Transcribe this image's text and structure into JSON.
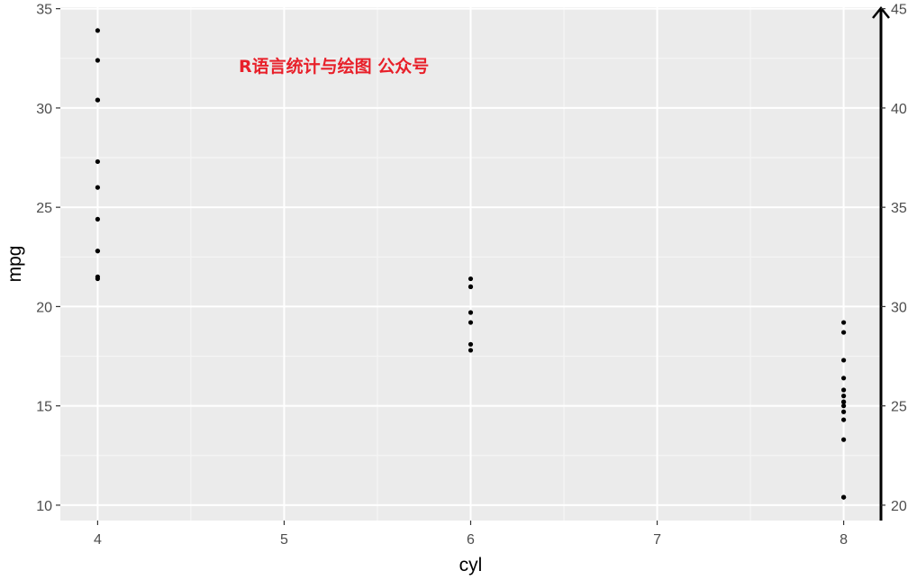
{
  "watermark": {
    "text": "R语言统计与绘图 公众号",
    "color": "#e8202a"
  },
  "colors": {
    "panel": "#ebebeb",
    "grid_major": "#ffffff",
    "grid_minor": "#f5f5f5",
    "point": "#000000",
    "tick_text": "#4d4d4d",
    "arrow": "#000000"
  },
  "chart_data": {
    "type": "scatter",
    "xlabel": "cyl",
    "ylabel": "mpg",
    "xlim": [
      3.8,
      8.2
    ],
    "ylim": [
      9.225,
      35.075
    ],
    "x_ticks": [
      4,
      5,
      6,
      7,
      8
    ],
    "x_tick_labels": [
      "4",
      "5",
      "6",
      "7",
      "8"
    ],
    "y_ticks": [
      10,
      15,
      20,
      25,
      30,
      35
    ],
    "y_tick_labels": [
      "10",
      "15",
      "20",
      "25",
      "30",
      "35"
    ],
    "secondary_y": {
      "ticks": [
        20,
        25,
        30,
        35,
        40,
        45
      ],
      "tick_labels": [
        "20",
        "25",
        "30",
        "35",
        "40",
        "45"
      ],
      "offset": 10,
      "axis_line": "arrow"
    },
    "grid": true,
    "series": [
      {
        "x": [
          4,
          4,
          4,
          4,
          4,
          4,
          4,
          4,
          4,
          4,
          4,
          6,
          6,
          6,
          6,
          6,
          6,
          6,
          8,
          8,
          8,
          8,
          8,
          8,
          8,
          8,
          8,
          8,
          8,
          8,
          8,
          8
        ],
        "y": [
          22.8,
          24.4,
          22.8,
          32.4,
          30.4,
          33.9,
          21.5,
          27.3,
          26.0,
          30.4,
          21.4,
          21.0,
          21.0,
          21.4,
          18.1,
          19.2,
          17.8,
          19.7,
          18.7,
          14.3,
          16.4,
          17.3,
          15.2,
          10.4,
          10.4,
          14.7,
          15.5,
          15.2,
          13.3,
          19.2,
          15.8,
          15.0
        ]
      }
    ]
  }
}
